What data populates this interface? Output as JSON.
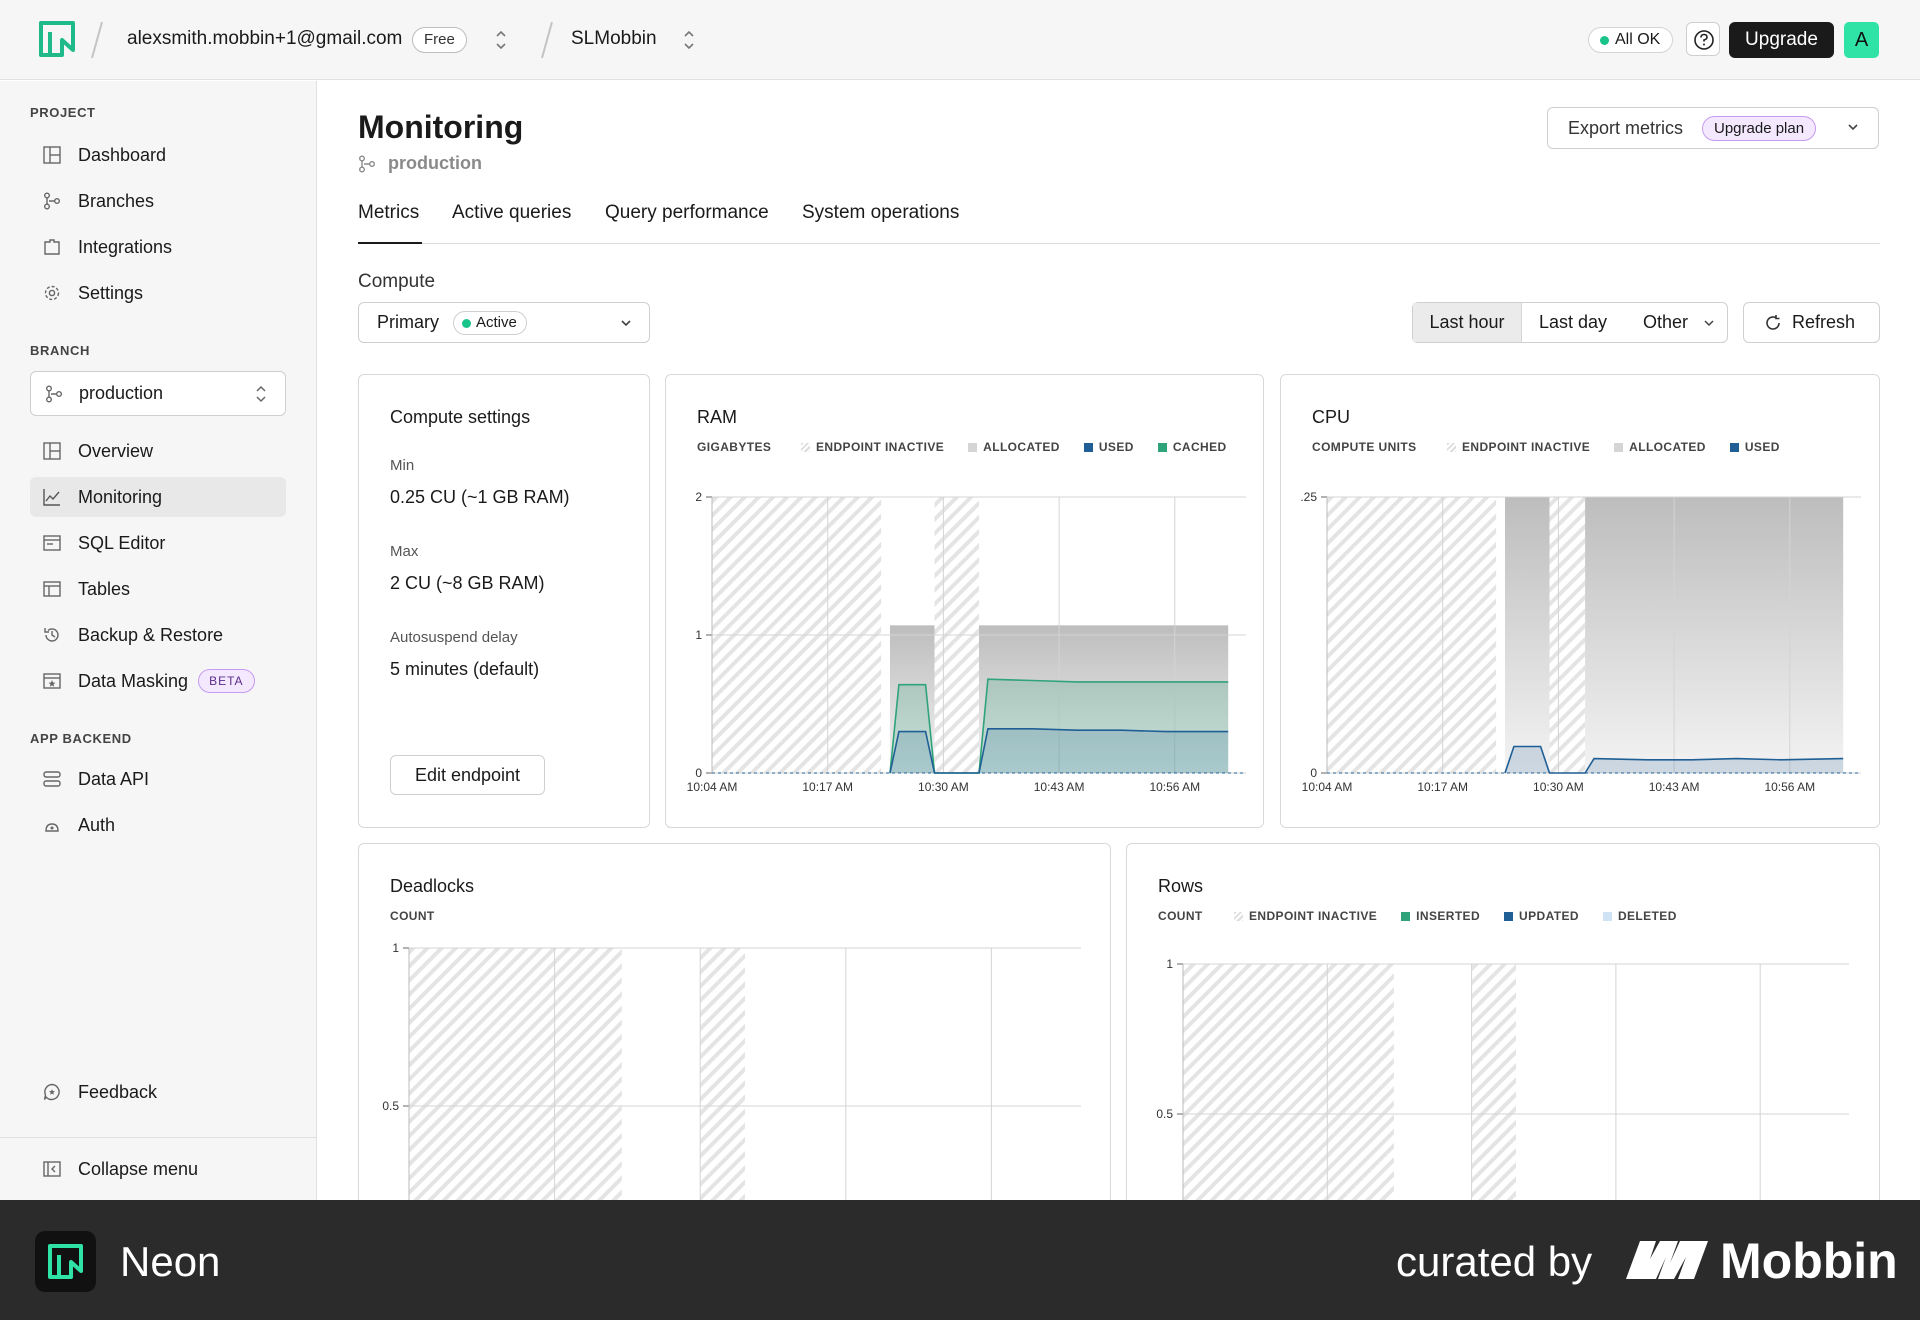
{
  "topbar": {
    "account_email": "alexsmith.mobbin+1@gmail.com",
    "plan_badge": "Free",
    "project_name": "SLMobbin",
    "status": "All OK",
    "upgrade_label": "Upgrade",
    "avatar_letter": "A"
  },
  "sidebar": {
    "project_section": "PROJECT",
    "project_items": [
      {
        "label": "Dashboard",
        "icon": "dashboard-icon"
      },
      {
        "label": "Branches",
        "icon": "branches-icon"
      },
      {
        "label": "Integrations",
        "icon": "integrations-icon"
      },
      {
        "label": "Settings",
        "icon": "gear-icon"
      }
    ],
    "branch_section": "BRANCH",
    "branch_select": "production",
    "branch_items": [
      {
        "label": "Overview",
        "icon": "overview-icon"
      },
      {
        "label": "Monitoring",
        "icon": "monitoring-icon",
        "active": true
      },
      {
        "label": "SQL Editor",
        "icon": "sql-editor-icon"
      },
      {
        "label": "Tables",
        "icon": "tables-icon"
      },
      {
        "label": "Backup & Restore",
        "icon": "backup-restore-icon"
      },
      {
        "label": "Data Masking",
        "icon": "data-masking-icon",
        "badge": "BETA"
      }
    ],
    "backend_section": "APP BACKEND",
    "backend_items": [
      {
        "label": "Data API",
        "icon": "data-api-icon"
      },
      {
        "label": "Auth",
        "icon": "auth-icon"
      }
    ],
    "feedback_label": "Feedback",
    "collapse_label": "Collapse menu"
  },
  "main": {
    "title": "Monitoring",
    "branch": "production",
    "export_label": "Export metrics",
    "upgrade_plan_label": "Upgrade plan",
    "tabs": [
      "Metrics",
      "Active queries",
      "Query performance",
      "System operations"
    ],
    "compute_label": "Compute",
    "compute_select": "Primary",
    "compute_status": "Active",
    "ranges": [
      "Last hour",
      "Last day",
      "Other"
    ],
    "refresh_label": "Refresh"
  },
  "compute_settings": {
    "title": "Compute settings",
    "min_label": "Min",
    "min_value": "0.25 CU (~1 GB RAM)",
    "max_label": "Max",
    "max_value": "2 CU (~8 GB RAM)",
    "autosuspend_label": "Autosuspend delay",
    "autosuspend_value": "5 minutes (default)",
    "edit_label": "Edit endpoint"
  },
  "colors": {
    "used": "#1f5f96",
    "cached": "#2fa37a",
    "allocated": "#c8c8c8",
    "accent_green": "#19c48a",
    "beta_bg": "#f4e8ff"
  },
  "chart_data": [
    {
      "type": "area",
      "title": "RAM",
      "units": "GIGABYTES",
      "legend": [
        "ENDPOINT INACTIVE",
        "ALLOCATED",
        "USED",
        "CACHED"
      ],
      "x_ticks": [
        "10:04 AM",
        "10:17 AM",
        "10:30 AM",
        "10:43 AM",
        "10:56 AM"
      ],
      "y_ticks": [
        "0",
        "1",
        "2"
      ],
      "ylim": [
        0,
        2
      ],
      "inactive_ranges": [
        [
          "10:04 AM",
          "10:23 AM"
        ],
        [
          "10:29 AM",
          "10:34 AM"
        ]
      ],
      "allocated_ranges": [
        [
          "10:24 AM",
          "10:29 AM",
          1.07
        ],
        [
          "10:34 AM",
          "11:02 AM",
          1.07
        ]
      ],
      "series": [
        {
          "name": "USED",
          "x": [
            "10:24 AM",
            "10:25 AM",
            "10:28 AM",
            "10:29 AM",
            "10:34 AM",
            "10:35 AM",
            "10:40 AM",
            "10:45 AM",
            "10:50 AM",
            "10:55 AM",
            "11:02 AM"
          ],
          "values": [
            0,
            0.3,
            0.3,
            0,
            0,
            0.32,
            0.32,
            0.31,
            0.31,
            0.3,
            0.3
          ]
        },
        {
          "name": "CACHED",
          "x": [
            "10:24 AM",
            "10:25 AM",
            "10:28 AM",
            "10:29 AM",
            "10:34 AM",
            "10:35 AM",
            "10:40 AM",
            "10:45 AM",
            "10:50 AM",
            "10:55 AM",
            "11:02 AM"
          ],
          "values": [
            0,
            0.64,
            0.64,
            0,
            0,
            0.68,
            0.67,
            0.66,
            0.66,
            0.66,
            0.66
          ]
        }
      ]
    },
    {
      "type": "area",
      "title": "CPU",
      "units": "COMPUTE UNITS",
      "legend": [
        "ENDPOINT INACTIVE",
        "ALLOCATED",
        "USED"
      ],
      "x_ticks": [
        "10:04 AM",
        "10:17 AM",
        "10:30 AM",
        "10:43 AM",
        "10:56 AM"
      ],
      "y_ticks": [
        "0",
        ".25"
      ],
      "ylim": [
        0,
        0.25
      ],
      "inactive_ranges": [
        [
          "10:04 AM",
          "10:23 AM"
        ],
        [
          "10:29 AM",
          "10:33 AM"
        ]
      ],
      "allocated_ranges": [
        [
          "10:24 AM",
          "10:29 AM",
          0.25
        ],
        [
          "10:33 AM",
          "11:02 AM",
          0.25
        ]
      ],
      "series": [
        {
          "name": "USED",
          "x": [
            "10:24 AM",
            "10:25 AM",
            "10:28 AM",
            "10:29 AM",
            "10:33 AM",
            "10:34 AM",
            "10:40 AM",
            "10:45 AM",
            "10:50 AM",
            "10:55 AM",
            "11:02 AM"
          ],
          "values": [
            0,
            0.024,
            0.024,
            0,
            0,
            0.013,
            0.012,
            0.012,
            0.013,
            0.012,
            0.013
          ]
        }
      ]
    },
    {
      "type": "line",
      "title": "Deadlocks",
      "units": "COUNT",
      "legend": [],
      "y_ticks": [
        "0.5",
        "1"
      ],
      "ylim": [
        0,
        1
      ],
      "inactive_ranges": [
        [
          "10:04 AM",
          "10:23 AM"
        ],
        [
          "10:30 AM",
          "10:34 AM"
        ]
      ]
    },
    {
      "type": "area",
      "title": "Rows",
      "units": "COUNT",
      "legend": [
        "ENDPOINT INACTIVE",
        "INSERTED",
        "UPDATED",
        "DELETED"
      ],
      "y_ticks": [
        "0.5",
        "1"
      ],
      "ylim": [
        0,
        1
      ],
      "inactive_ranges": [
        [
          "10:04 AM",
          "10:23 AM"
        ],
        [
          "10:30 AM",
          "10:34 AM"
        ]
      ]
    }
  ],
  "footer": {
    "app_name": "Neon",
    "curated_by": "curated by",
    "brand": "Mobbin"
  }
}
